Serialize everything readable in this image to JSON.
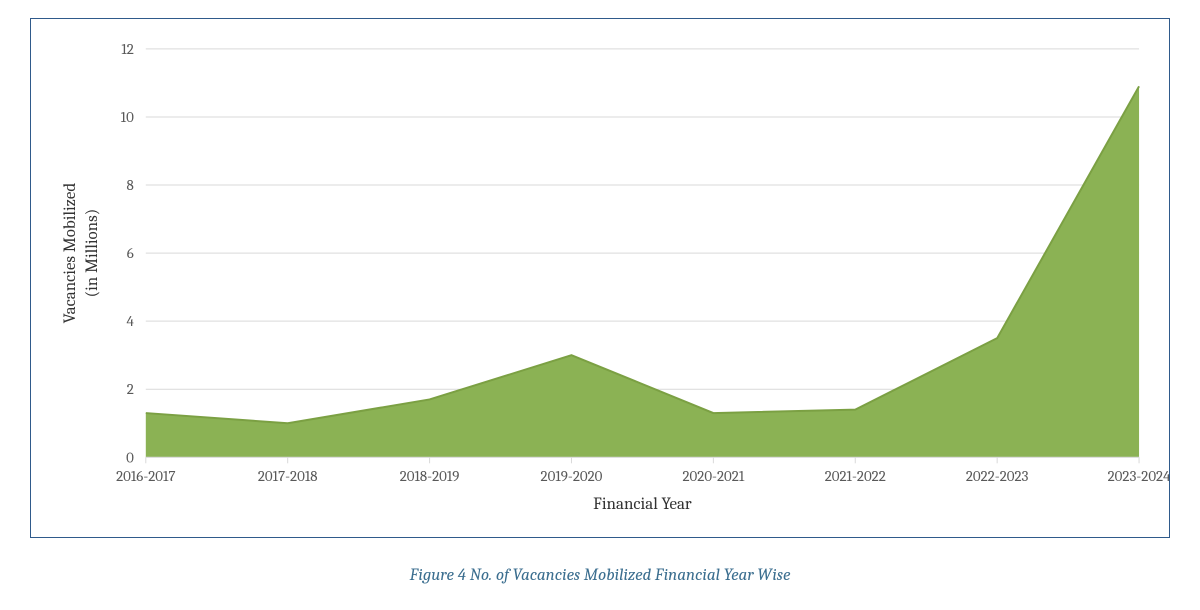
{
  "chart": {
    "type": "area",
    "categories": [
      "2016-2017",
      "2017-2018",
      "2018-2019",
      "2019-2020",
      "2020-2021",
      "2021-2022",
      "2022-2023",
      "2023-2024"
    ],
    "values": [
      1.3,
      1.0,
      1.7,
      3.0,
      1.3,
      1.4,
      3.5,
      10.9
    ],
    "y": {
      "min": 0,
      "max": 12,
      "tick_step": 2,
      "label_line1": "Vacancies Mobilized",
      "label_line2": "(in Millions)"
    },
    "x": {
      "label": "Financial Year"
    },
    "colors": {
      "background": "#ffffff",
      "frame_border": "#2f5a8b",
      "grid": "#d9d9d9",
      "axis_line": "#d9d9d9",
      "area_fill": "#8bb254",
      "area_stroke": "#7ba043",
      "tick_text": "#595959",
      "axis_label_text": "#333333",
      "caption_text": "#3b6e8f"
    },
    "fonts": {
      "tick_fontsize": 15,
      "axis_label_fontsize": 17,
      "caption_fontsize": 17
    }
  },
  "caption": "Figure 4 No. of Vacancies Mobilized Financial Year Wise"
}
